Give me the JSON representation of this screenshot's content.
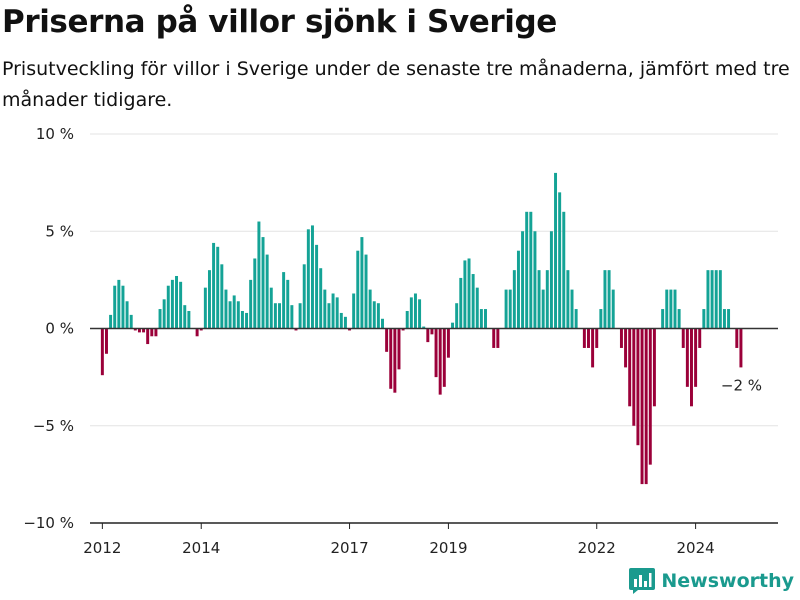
{
  "header": {
    "title": "Priserna på villor sjönk i Sverige",
    "subtitle": "Prisutveckling för villor i Sverige under de senaste tre månaderna, jämfört med tre månader tidigare."
  },
  "brand": {
    "name": "Newsworthy",
    "logo_icon": "bar-chart-logo-icon"
  },
  "colors": {
    "positive": "#14a396",
    "negative": "#9b0039",
    "grid": "#e3e3e3",
    "zero_line": "#333333",
    "brand": "#1a9a8e"
  },
  "chart_data": {
    "type": "bar",
    "title": "Priserna på villor sjönk i Sverige",
    "xlabel": "",
    "ylabel": "",
    "ylim": [
      -10,
      10
    ],
    "yticks": [
      10,
      5,
      0,
      -5,
      -10
    ],
    "ytick_labels": [
      "10 %",
      "5 %",
      "0 %",
      "−5 %",
      "−10 %"
    ],
    "xlim": [
      "2011-10",
      "2025-09"
    ],
    "xticks": [
      "2012-01",
      "2014-01",
      "2017-01",
      "2019-01",
      "2022-01",
      "2024-01"
    ],
    "xtick_labels": [
      "2012",
      "2014",
      "2017",
      "2019",
      "2022",
      "2024"
    ],
    "grid": true,
    "annotation": {
      "x": "2024-12",
      "y": -2,
      "text": "−2 %"
    },
    "x": [
      "2012-01",
      "2012-02",
      "2012-03",
      "2012-04",
      "2012-05",
      "2012-06",
      "2012-07",
      "2012-08",
      "2012-09",
      "2012-10",
      "2012-11",
      "2012-12",
      "2013-01",
      "2013-02",
      "2013-03",
      "2013-04",
      "2013-05",
      "2013-06",
      "2013-07",
      "2013-08",
      "2013-09",
      "2013-10",
      "2013-11",
      "2013-12",
      "2014-01",
      "2014-02",
      "2014-03",
      "2014-04",
      "2014-05",
      "2014-06",
      "2014-07",
      "2014-08",
      "2014-09",
      "2014-10",
      "2014-11",
      "2014-12",
      "2015-01",
      "2015-02",
      "2015-03",
      "2015-04",
      "2015-05",
      "2015-06",
      "2015-07",
      "2015-08",
      "2015-09",
      "2015-10",
      "2015-11",
      "2015-12",
      "2016-01",
      "2016-02",
      "2016-03",
      "2016-04",
      "2016-05",
      "2016-06",
      "2016-07",
      "2016-08",
      "2016-09",
      "2016-10",
      "2016-11",
      "2016-12",
      "2017-01",
      "2017-02",
      "2017-03",
      "2017-04",
      "2017-05",
      "2017-06",
      "2017-07",
      "2017-08",
      "2017-09",
      "2017-10",
      "2017-11",
      "2017-12",
      "2018-01",
      "2018-02",
      "2018-03",
      "2018-04",
      "2018-05",
      "2018-06",
      "2018-07",
      "2018-08",
      "2018-09",
      "2018-10",
      "2018-11",
      "2018-12",
      "2019-01",
      "2019-02",
      "2019-03",
      "2019-04",
      "2019-05",
      "2019-06",
      "2019-07",
      "2019-08",
      "2019-09",
      "2019-10",
      "2019-11",
      "2019-12",
      "2020-01",
      "2020-02",
      "2020-03",
      "2020-04",
      "2020-05",
      "2020-06",
      "2020-07",
      "2020-08",
      "2020-09",
      "2020-10",
      "2020-11",
      "2020-12",
      "2021-01",
      "2021-02",
      "2021-03",
      "2021-04",
      "2021-05",
      "2021-06",
      "2021-07",
      "2021-08",
      "2021-09",
      "2021-10",
      "2021-11",
      "2021-12",
      "2022-01",
      "2022-02",
      "2022-03",
      "2022-04",
      "2022-05",
      "2022-06",
      "2022-07",
      "2022-08",
      "2022-09",
      "2022-10",
      "2022-11",
      "2022-12",
      "2023-01",
      "2023-02",
      "2023-03",
      "2023-04",
      "2023-05",
      "2023-06",
      "2023-07",
      "2023-08",
      "2023-09",
      "2023-10",
      "2023-11",
      "2023-12",
      "2024-01",
      "2024-02",
      "2024-03",
      "2024-04",
      "2024-05",
      "2024-06",
      "2024-07",
      "2024-08",
      "2024-09",
      "2024-10",
      "2024-11",
      "2024-12"
    ],
    "values": [
      -2.4,
      -1.3,
      0.7,
      2.2,
      2.5,
      2.2,
      1.4,
      0.7,
      -0.1,
      -0.2,
      -0.2,
      -0.8,
      -0.4,
      -0.4,
      1.0,
      1.5,
      2.2,
      2.5,
      2.7,
      2.4,
      1.2,
      0.9,
      0.0,
      -0.4,
      -0.1,
      2.1,
      3.0,
      4.4,
      4.2,
      3.3,
      2.0,
      1.4,
      1.7,
      1.4,
      0.9,
      0.8,
      2.5,
      3.6,
      5.5,
      4.7,
      3.8,
      2.1,
      1.3,
      1.3,
      2.9,
      2.5,
      1.2,
      -0.1,
      1.3,
      3.3,
      5.1,
      5.3,
      4.3,
      3.1,
      2.0,
      1.3,
      1.8,
      1.6,
      0.8,
      0.6,
      -0.1,
      1.8,
      4.0,
      4.7,
      3.8,
      2.0,
      1.4,
      1.3,
      0.5,
      -1.2,
      -3.1,
      -3.3,
      -2.1,
      -0.1,
      0.9,
      1.6,
      1.8,
      1.5,
      0.1,
      -0.7,
      -0.3,
      -2.5,
      -3.4,
      -3.0,
      -1.5,
      0.3,
      1.3,
      2.6,
      3.5,
      3.6,
      2.8,
      2.1,
      1.0,
      1.0,
      0.0,
      -1.0,
      -1.0,
      0.0,
      2.0,
      2.0,
      3.0,
      4.0,
      5.0,
      6.0,
      6.0,
      5.0,
      3.0,
      2.0,
      3.0,
      5.0,
      8.0,
      7.0,
      6.0,
      3.0,
      2.0,
      1.0,
      0.0,
      -1.0,
      -1.0,
      -2.0,
      -1.0,
      1.0,
      3.0,
      3.0,
      2.0,
      0.0,
      -1.0,
      -2.0,
      -4.0,
      -5.0,
      -6.0,
      -8.0,
      -8.0,
      -7.0,
      -4.0,
      0.0,
      1.0,
      2.0,
      2.0,
      2.0,
      1.0,
      -1.0,
      -3.0,
      -4.0,
      -3.0,
      -1.0,
      1.0,
      3.0,
      3.0,
      3.0,
      3.0,
      1.0,
      1.0,
      0.0,
      -1.0,
      -2.0
    ]
  }
}
